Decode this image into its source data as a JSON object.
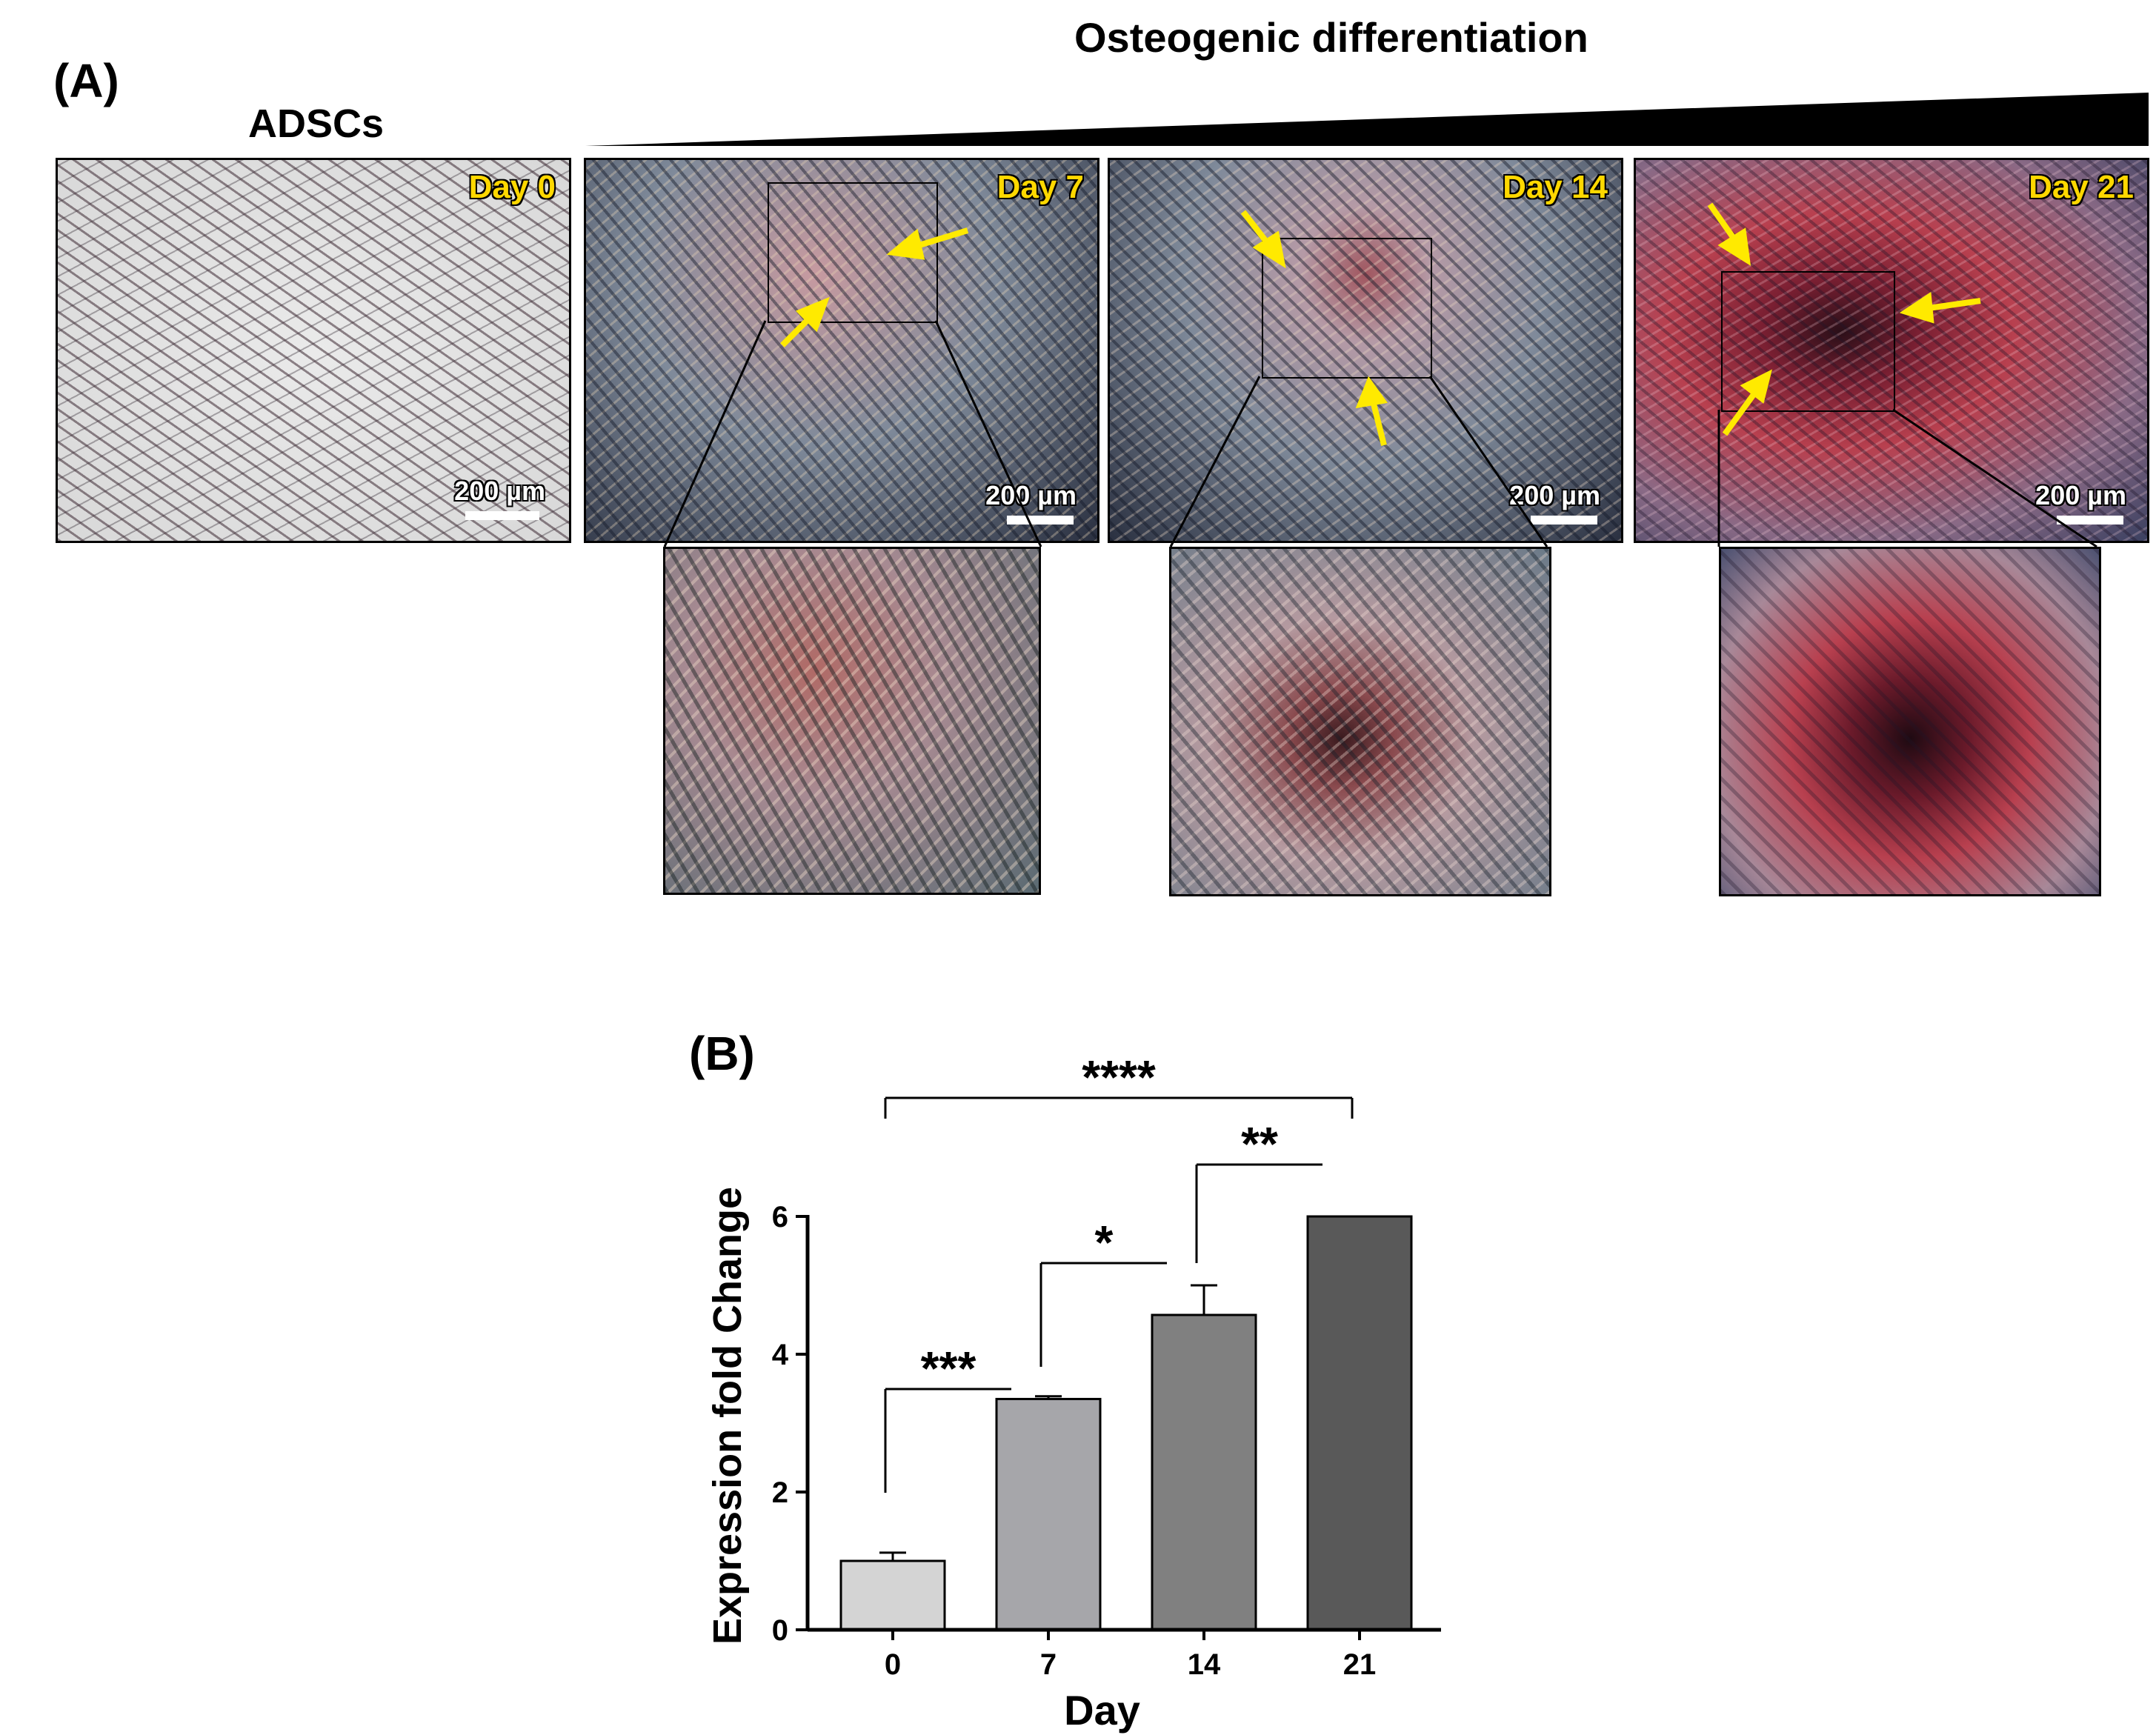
{
  "panel_a": {
    "label": "(A)",
    "header": "Osteogenic differentiation",
    "adscs_label": "ADSCs",
    "panels": [
      {
        "day": "Day 0",
        "scale": "200 µm"
      },
      {
        "day": "Day 7",
        "scale": "200 µm"
      },
      {
        "day": "Day 14",
        "scale": "200 µm"
      },
      {
        "day": "Day 21",
        "scale": "200 µm"
      }
    ]
  },
  "panel_b": {
    "label": "(B)"
  },
  "chart_data": {
    "type": "bar",
    "categories": [
      "0",
      "7",
      "14",
      "21"
    ],
    "values": [
      1.0,
      3.35,
      4.57,
      6.0
    ],
    "errors": [
      0.12,
      0.04,
      0.43,
      0.0
    ],
    "colors": [
      "#d4d4d4",
      "#a6a6aa",
      "#808080",
      "#595959"
    ],
    "xlabel": "Day",
    "ylabel": "Expression fold Change",
    "ylim": [
      0,
      6
    ],
    "yticks": [
      "0",
      "2",
      "4",
      "6"
    ],
    "significance": [
      {
        "from": "0",
        "to": "7",
        "label": "***"
      },
      {
        "from": "7",
        "to": "14",
        "label": "*"
      },
      {
        "from": "14",
        "to": "21",
        "label": "**"
      },
      {
        "from": "0",
        "to": "21",
        "label": "****"
      }
    ]
  }
}
